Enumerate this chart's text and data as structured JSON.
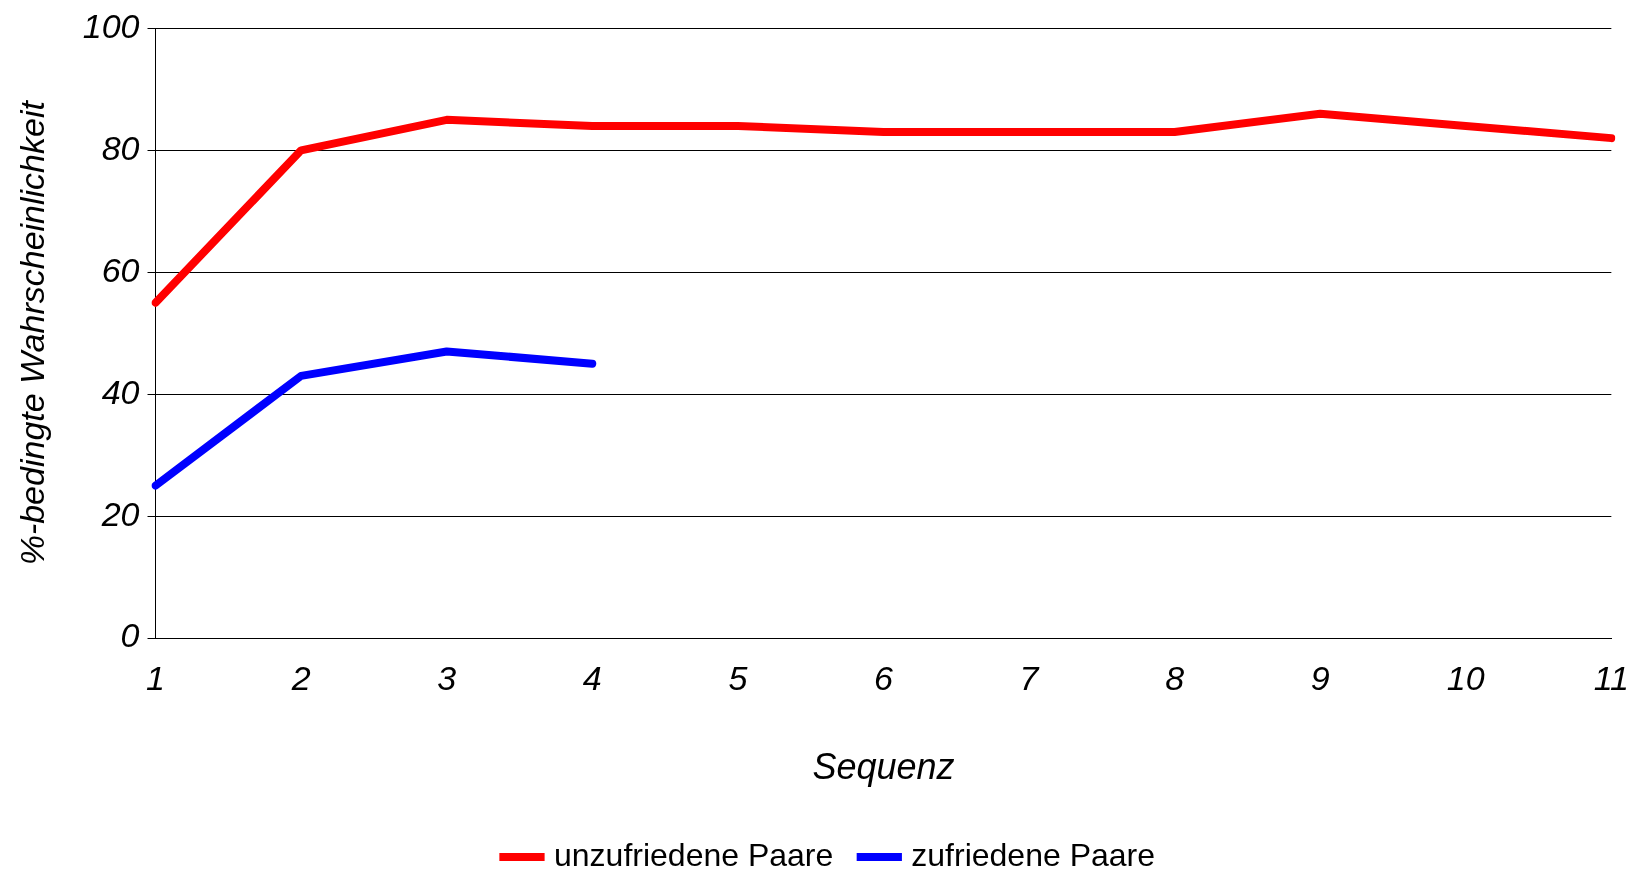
{
  "chart_data": {
    "type": "line",
    "xlabel": "Sequenz",
    "ylabel": "%-bedingte Wahrscheinlichkeit",
    "categories": [
      "1",
      "2",
      "3",
      "4",
      "5",
      "6",
      "7",
      "8",
      "9",
      "10",
      "11"
    ],
    "series": [
      {
        "name": "unzufriedene Paare",
        "color": "#ff0000",
        "values": [
          55,
          80,
          85,
          84,
          84,
          83,
          83,
          83,
          86,
          84,
          82
        ]
      },
      {
        "name": "zufriedene Paare",
        "color": "#0000ff",
        "values": [
          25,
          43,
          47,
          45,
          null,
          null,
          null,
          null,
          null,
          null,
          null
        ]
      }
    ],
    "ylim": [
      0,
      100
    ],
    "yticks": [
      0,
      20,
      40,
      60,
      80,
      100
    ],
    "grid": "y",
    "legend": "bottom",
    "marker": "none",
    "line_style": "solid"
  }
}
